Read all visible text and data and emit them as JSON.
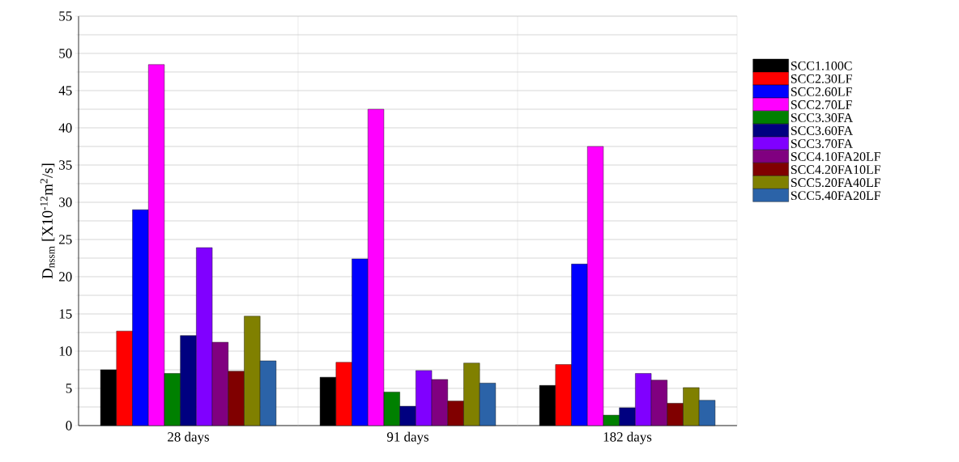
{
  "chart_data": {
    "type": "bar",
    "ylabel": "D$_{nssm}$  [X10$^{-12}$m$^{2}$/s]",
    "categories": [
      "28 days",
      "91 days",
      "182 days"
    ],
    "series": [
      {
        "name": "SCC1.100C",
        "color": "#000000",
        "values": [
          7.5,
          6.5,
          5.4
        ]
      },
      {
        "name": "SCC2.30LF",
        "color": "#ff0000",
        "values": [
          12.7,
          8.5,
          8.2
        ]
      },
      {
        "name": "SCC2.60LF",
        "color": "#0000ff",
        "values": [
          29,
          22.4,
          21.7
        ]
      },
      {
        "name": "SCC2.70LF",
        "color": "#ff00ff",
        "values": [
          48.5,
          42.5,
          37.5
        ]
      },
      {
        "name": "SCC3.30FA",
        "color": "#008000",
        "values": [
          7.0,
          4.5,
          1.4
        ]
      },
      {
        "name": "SCC3.60FA",
        "color": "#000080",
        "values": [
          12.1,
          2.6,
          2.4
        ]
      },
      {
        "name": "SCC3.70FA",
        "color": "#8000ff",
        "values": [
          23.9,
          7.4,
          7.0
        ]
      },
      {
        "name": "SCC4.10FA20LF",
        "color": "#800080",
        "values": [
          11.2,
          6.2,
          6.1
        ]
      },
      {
        "name": "SCC4.20FA10LF",
        "color": "#800000",
        "values": [
          7.3,
          3.3,
          3.0
        ]
      },
      {
        "name": "SCC5.20FA40LF",
        "color": "#808000",
        "values": [
          14.7,
          8.4,
          5.1
        ]
      },
      {
        "name": "SCC5.40FA20LF",
        "color": "#2b63a8",
        "values": [
          8.7,
          5.7,
          3.4
        ]
      }
    ],
    "ylim": [
      0,
      55
    ],
    "yticks": [
      0,
      5,
      10,
      15,
      20,
      25,
      30,
      35,
      40,
      45,
      50,
      55
    ],
    "grid": true,
    "legend": "right"
  }
}
